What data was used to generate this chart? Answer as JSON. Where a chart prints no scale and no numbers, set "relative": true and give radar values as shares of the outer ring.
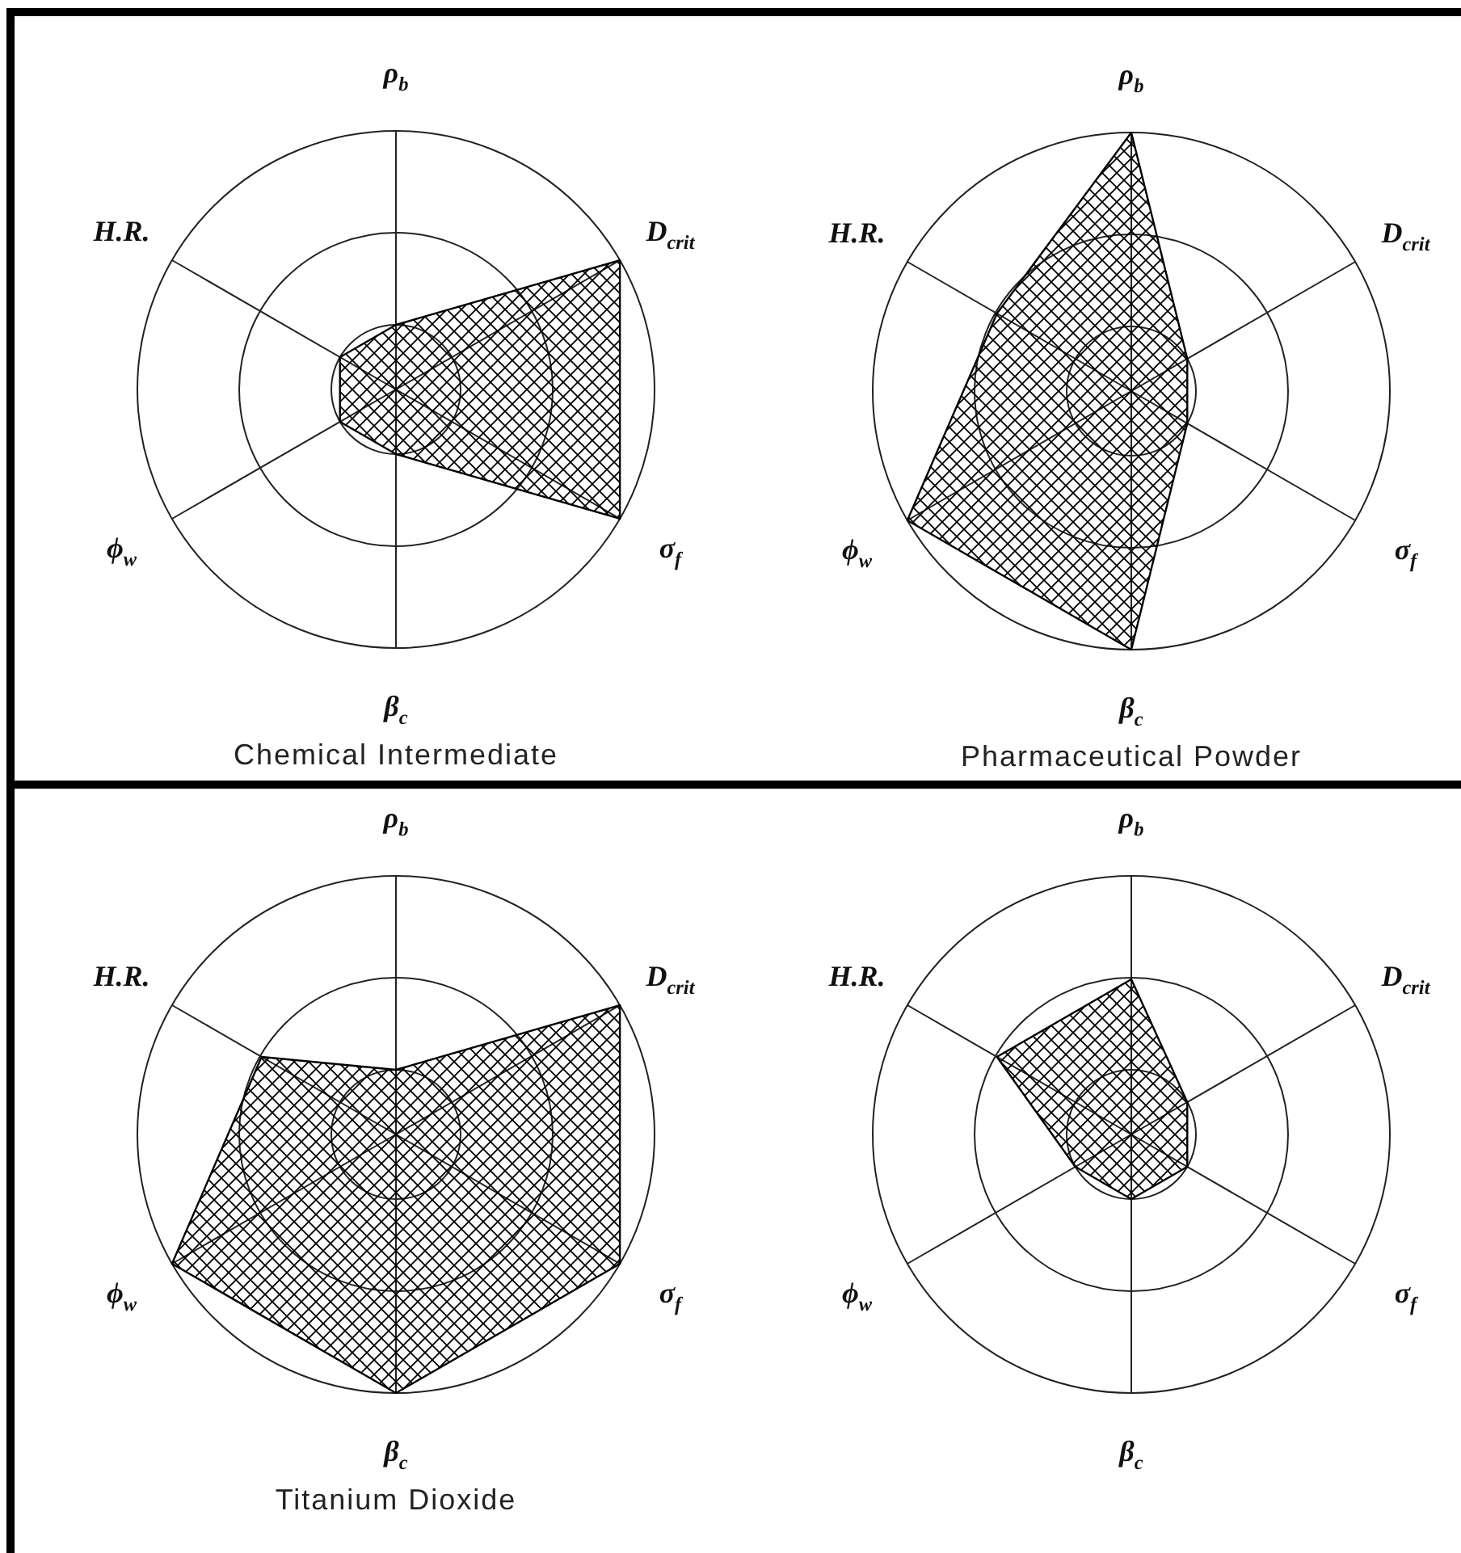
{
  "chart_data": [
    {
      "type": "radar",
      "title": "Chemical Intermediate",
      "categories": [
        "ρ$_{b}$",
        "D$_{crit}$",
        "σ$_{f}$",
        "β$_{c}$",
        "ϕ$_{w}$",
        "H.R."
      ],
      "relative": true,
      "grid": true,
      "series": [
        {
          "color": "#000000",
          "values": [
            0.25,
            1,
            1,
            0.25,
            0.25,
            0.25
          ]
        }
      ]
    },
    {
      "type": "radar",
      "title": "Pharmaceutical Powder",
      "categories": [
        "ρ$_{b}$",
        "D$_{crit}$",
        "σ$_{f}$",
        "β$_{c}$",
        "ϕ$_{w}$",
        "H.R."
      ],
      "relative": true,
      "grid": true,
      "series": [
        {
          "color": "#000000",
          "values": [
            1,
            0.25,
            0.25,
            1,
            1,
            0.6
          ]
        }
      ]
    },
    {
      "type": "radar",
      "title": "Titanium Dioxide",
      "categories": [
        "ρ$_{b}$",
        "D$_{crit}$",
        "σ$_{f}$",
        "β$_{c}$",
        "ϕ$_{w}$",
        "H.R."
      ],
      "relative": true,
      "grid": true,
      "series": [
        {
          "color": "#000000",
          "values": [
            0.25,
            1,
            1,
            1,
            1,
            0.6
          ]
        }
      ]
    },
    {
      "type": "radar",
      "categories": [
        "ρ$_{b}$",
        "D$_{crit}$",
        "σ$_{f}$",
        "β$_{c}$",
        "ϕ$_{w}$",
        "H.R."
      ],
      "relative": true,
      "grid": true,
      "series": [
        {
          "color": "#000000",
          "values": [
            0.6,
            0.25,
            0.25,
            0.25,
            0.25,
            0.6
          ]
        }
      ]
    }
  ]
}
